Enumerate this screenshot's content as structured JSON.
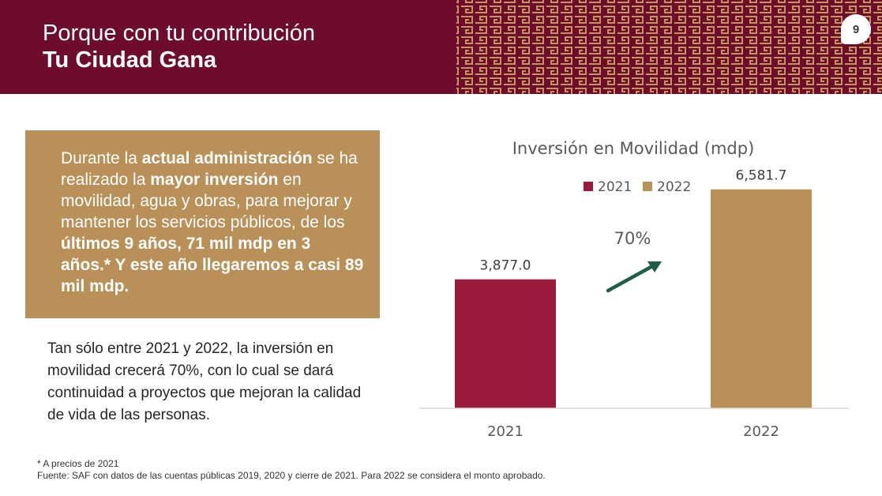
{
  "header": {
    "title_line1": "Porque con tu contribución",
    "title_line2": "Tu Ciudad Gana",
    "page_number": "9"
  },
  "highlight": {
    "t1": "Durante la ",
    "b1": "actual administración",
    "t2": " se ha realizado la ",
    "b2": "mayor inversión",
    "t3": " en movilidad, agua y obras, para mejorar y mantener los servicios públicos, de los ",
    "b3": "últimos 9 años, 71 mil mdp en 3 años.* Y este año llegaremos a casi 89 mil mdp."
  },
  "body_text": "Tan sólo entre 2021 y 2022, la inversión en movilidad crecerá 70%, con lo cual se dará continuidad a proyectos que mejoran la calidad de vida de las personas.",
  "notes": {
    "note1": "* A precios de 2021",
    "note2": "Fuente: SAF con datos de las cuentas públicas 2019, 2020 y cierre de 2021. Para 2022 se considera el monto aprobado."
  },
  "colors": {
    "header": "#6e0d2b",
    "bar_2021": "#9b1b3d",
    "bar_2022": "#b99158",
    "arrow": "#1f5c4a"
  },
  "chart_data": {
    "type": "bar",
    "title": "Inversión en Movilidad (mdp)",
    "categories": [
      "2021",
      "2022"
    ],
    "values": [
      3877.0,
      6581.7
    ],
    "value_labels": [
      "3,877.0",
      "6,581.7"
    ],
    "legend": [
      "2021",
      "2022"
    ],
    "legend_position": "top",
    "annotation": "70%",
    "ylim": [
      0,
      8000
    ],
    "grid": false
  }
}
